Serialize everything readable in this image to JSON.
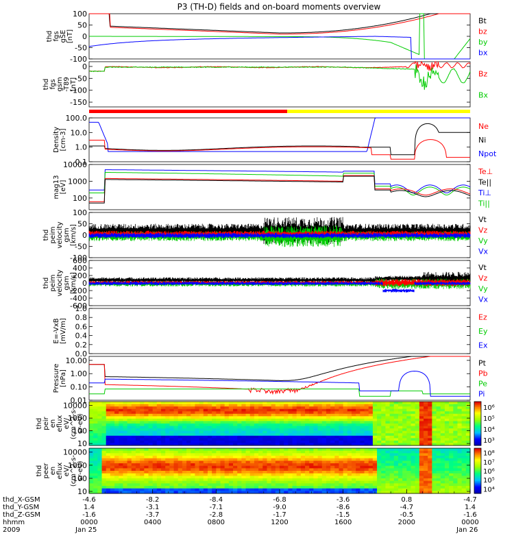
{
  "title": "P3 (TH-D) fields and on-board moments overview",
  "panels": [
    {
      "id": "fgs-gse",
      "ylabel": [
        "thd",
        "fgs",
        "gSE",
        "[nT]"
      ],
      "ylim": [
        -100,
        100
      ],
      "scale": "linear",
      "ticks": [
        "100",
        "50",
        "0",
        "-50",
        "-100"
      ],
      "tick_values": [
        100,
        50,
        0,
        -50,
        -100
      ],
      "legend": [
        {
          "label": "Bt",
          "color": "#000000"
        },
        {
          "label": "bz",
          "color": "#ff0000"
        },
        {
          "label": "by",
          "color": "#00cc00"
        },
        {
          "label": "bx",
          "color": "#0000ff"
        }
      ]
    },
    {
      "id": "fgs-gsm-t89",
      "ylabel": [
        "thd",
        "fgs",
        "gsm",
        "-T89",
        "[nT]"
      ],
      "ylim": [
        -170,
        20
      ],
      "scale": "linear",
      "ticks": [
        "0",
        "-50",
        "-100",
        "-150"
      ],
      "tick_values": [
        0,
        -50,
        -100,
        -150
      ],
      "legend": [
        {
          "label": "Bz",
          "color": "#ff0000"
        },
        {
          "label": "Bx",
          "color": "#00cc00"
        }
      ]
    },
    {
      "id": "mode-bar",
      "bar": [
        {
          "from": 0.0,
          "to": 0.52,
          "color": "#ff0000"
        },
        {
          "from": 0.52,
          "to": 1.0,
          "color": "#ffff00"
        }
      ]
    },
    {
      "id": "density",
      "ylabel": [
        "Density",
        "[cm-3]"
      ],
      "ylim": [
        0.1,
        100
      ],
      "scale": "log",
      "ticks": [
        "100.0",
        "10.0",
        "1.0",
        "0.1"
      ],
      "tick_values": [
        100,
        10,
        1,
        0.1
      ],
      "legend": [
        {
          "label": "Ne",
          "color": "#ff0000"
        },
        {
          "label": "Ni",
          "color": "#000000"
        },
        {
          "label": "Npot",
          "color": "#0000ff"
        }
      ]
    },
    {
      "id": "temperature",
      "ylabel": [
        "mag13",
        "[eV]"
      ],
      "ylim": [
        20,
        10000
      ],
      "scale": "log",
      "ticks": [
        "10000",
        "1000",
        "100"
      ],
      "tick_values": [
        10000,
        1000,
        100
      ],
      "legend": [
        {
          "label": "Te⊥",
          "color": "#ff0000"
        },
        {
          "label": "Te||",
          "color": "#000000"
        },
        {
          "label": "Ti⊥",
          "color": "#0000ff"
        },
        {
          "label": "Ti||",
          "color": "#00cc00"
        }
      ]
    },
    {
      "id": "peim-velocity-1",
      "ylabel": [
        "thd",
        "peim",
        "velocity",
        "gsm",
        "[km/s]"
      ],
      "ylim": [
        -100,
        100
      ],
      "scale": "linear",
      "ticks": [
        "100",
        "50",
        "0",
        "-50",
        "-100"
      ],
      "tick_values": [
        100,
        50,
        0,
        -50,
        -100
      ],
      "legend": [
        {
          "label": "Vt",
          "color": "#000000"
        },
        {
          "label": "Vz",
          "color": "#ff0000"
        },
        {
          "label": "Vy",
          "color": "#00cc00"
        },
        {
          "label": "Vx",
          "color": "#0000ff"
        }
      ]
    },
    {
      "id": "peim-velocity-2",
      "ylabel": [
        "thd",
        "peim",
        "velocity",
        "gsm",
        "[km/s]"
      ],
      "ylim": [
        -600,
        600
      ],
      "scale": "linear",
      "ticks": [
        "600",
        "400",
        "200",
        "0",
        "-200",
        "-400",
        "-600"
      ],
      "tick_values": [
        600,
        400,
        200,
        0,
        -200,
        -400,
        -600
      ],
      "legend": [
        {
          "label": "Vt",
          "color": "#000000"
        },
        {
          "label": "Vz",
          "color": "#ff0000"
        },
        {
          "label": "Vy",
          "color": "#00cc00"
        },
        {
          "label": "Vx",
          "color": "#0000ff"
        }
      ]
    },
    {
      "id": "efield",
      "ylabel": [
        "E=-VxB",
        "[mV/m]"
      ],
      "ylim": [
        0,
        1
      ],
      "scale": "linear",
      "ticks": [
        "1.0",
        "0.8",
        "0.6",
        "0.4",
        "0.2",
        "0.0"
      ],
      "tick_values": [
        1.0,
        0.8,
        0.6,
        0.4,
        0.2,
        0.0
      ],
      "legend": [
        {
          "label": "Ez",
          "color": "#ff0000"
        },
        {
          "label": "Ey",
          "color": "#00cc00"
        },
        {
          "label": "Ex",
          "color": "#0000ff"
        }
      ]
    },
    {
      "id": "pressure",
      "ylabel": [
        "Pressure",
        "[nPa]"
      ],
      "ylim": [
        0.01,
        20
      ],
      "scale": "log",
      "ticks": [
        "10.00",
        "1.00",
        "0.10",
        "0.01"
      ],
      "tick_values": [
        10,
        1,
        0.1,
        0.01
      ],
      "legend": [
        {
          "label": "Pt",
          "color": "#000000"
        },
        {
          "label": "Pb",
          "color": "#ff0000"
        },
        {
          "label": "Pe",
          "color": "#00cc00"
        },
        {
          "label": "Pi",
          "color": "#0000ff"
        }
      ]
    },
    {
      "id": "peir-spectrogram",
      "ylabel": [
        "thd",
        "peir",
        "en",
        "eflux",
        "eV/",
        "(cm^2-s-",
        "sr-eV)"
      ],
      "ylim": [
        7,
        20000
      ],
      "scale": "log",
      "ticks": [
        "10000",
        "1000",
        "100",
        "10"
      ],
      "tick_values": [
        10000,
        1000,
        100,
        10
      ],
      "colorbar": {
        "labels": [
          "10⁶",
          "10⁵",
          "10⁴",
          "10³"
        ],
        "values": [
          6,
          5,
          4,
          3
        ]
      }
    },
    {
      "id": "peer-spectrogram",
      "ylabel": [
        "thd",
        "peer",
        "en",
        "eflux",
        "eV/",
        "(cm^2-s-",
        "sr-eV)"
      ],
      "ylim": [
        7,
        20000
      ],
      "scale": "log",
      "ticks": [
        "10000",
        "1000",
        "100",
        "10"
      ],
      "tick_values": [
        10000,
        1000,
        100,
        10
      ],
      "colorbar": {
        "labels": [
          "10⁸",
          "10⁷",
          "10⁶",
          "10⁵",
          "10⁴"
        ],
        "values": [
          8,
          7,
          6,
          5,
          4
        ]
      }
    }
  ],
  "xaxis": {
    "row_labels": [
      "thd_X-GSM",
      "thd_Y-GSM",
      "thd_Z-GSM",
      "hhmm",
      "2009"
    ],
    "columns": [
      {
        "hour": 0,
        "values": [
          "-4.6",
          "1.4",
          "-1.6",
          "0000",
          "Jan 25"
        ]
      },
      {
        "hour": 4,
        "values": [
          "-8.2",
          "-3.1",
          "-3.7",
          "0400",
          ""
        ]
      },
      {
        "hour": 8,
        "values": [
          "-8.4",
          "-7.1",
          "-2.8",
          "0800",
          ""
        ]
      },
      {
        "hour": 12,
        "values": [
          "-6.8",
          "-9.0",
          "-1.7",
          "1200",
          ""
        ]
      },
      {
        "hour": 16,
        "values": [
          "-3.6",
          "-8.6",
          "-1.5",
          "1600",
          ""
        ]
      },
      {
        "hour": 20,
        "values": [
          "0.8",
          "-4.7",
          "-0.5",
          "2000",
          ""
        ]
      },
      {
        "hour": 24,
        "values": [
          "-4.7",
          "1.4",
          "-1.6",
          "0000",
          "Jan 26"
        ]
      }
    ]
  }
}
